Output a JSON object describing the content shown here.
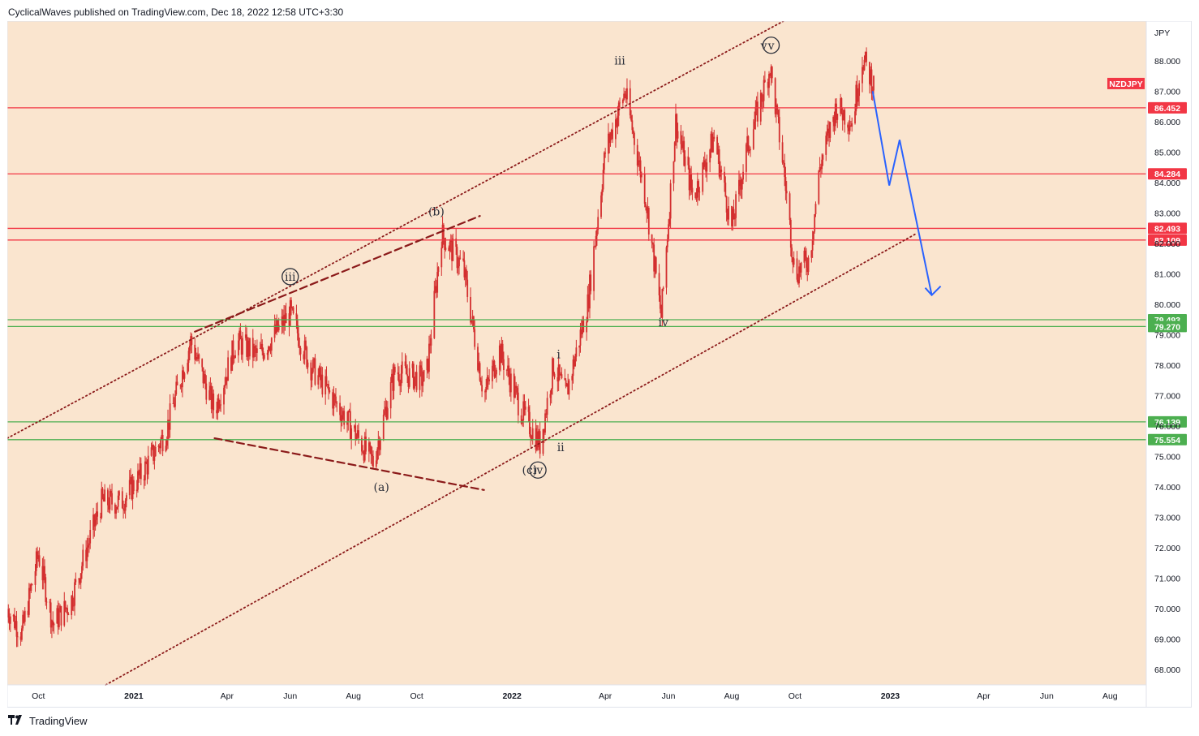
{
  "header": {
    "publisher_line": "CyclicalWaves published on TradingView.com, Dec 18, 2022 12:58 UTC+3:30"
  },
  "footer": {
    "brand": "TradingView",
    "logo_icon": "tradingview-logo-icon"
  },
  "colors": {
    "background": "#fae5cf",
    "resistance_line": "#f23645",
    "support_line": "#4caf50",
    "channel_line": "#8b1a1a",
    "forecast_arrow": "#2962ff",
    "candle": "#d32f2f",
    "frame": "#e0e3eb"
  },
  "chart_data": {
    "type": "candlestick",
    "symbol": "NZDJPY",
    "currency_label": "JPY",
    "ylim": [
      67.5,
      89.3
    ],
    "y_ticks": [
      "68.000",
      "69.000",
      "70.000",
      "71.000",
      "72.000",
      "73.000",
      "74.000",
      "75.000",
      "76.000",
      "77.000",
      "78.000",
      "79.000",
      "80.000",
      "81.000",
      "82.000",
      "83.000",
      "84.000",
      "85.000",
      "86.000",
      "87.000",
      "88.000"
    ],
    "x_ticks": [
      {
        "label": "Oct",
        "date": "2020-10",
        "bold": false
      },
      {
        "label": "2021",
        "date": "2021-01",
        "bold": true
      },
      {
        "label": "Apr",
        "date": "2021-04",
        "bold": false
      },
      {
        "label": "Jun",
        "date": "2021-06",
        "bold": false
      },
      {
        "label": "Aug",
        "date": "2021-08",
        "bold": false
      },
      {
        "label": "Oct",
        "date": "2021-10",
        "bold": false
      },
      {
        "label": "2022",
        "date": "2022-01",
        "bold": true
      },
      {
        "label": "Apr",
        "date": "2022-04",
        "bold": false
      },
      {
        "label": "Jun",
        "date": "2022-06",
        "bold": false
      },
      {
        "label": "Aug",
        "date": "2022-08",
        "bold": false
      },
      {
        "label": "Oct",
        "date": "2022-10",
        "bold": false
      },
      {
        "label": "2023",
        "date": "2023-01",
        "bold": true
      },
      {
        "label": "Apr",
        "date": "2023-04",
        "bold": false
      },
      {
        "label": "Jun",
        "date": "2023-06",
        "bold": false
      },
      {
        "label": "Aug",
        "date": "2023-08",
        "bold": false
      }
    ],
    "price_path": [
      {
        "date": "2020-09-01",
        "price": 70.0
      },
      {
        "date": "2020-09-15",
        "price": 69.2
      },
      {
        "date": "2020-10-01",
        "price": 71.8
      },
      {
        "date": "2020-10-15",
        "price": 69.5
      },
      {
        "date": "2020-11-01",
        "price": 70.2
      },
      {
        "date": "2020-11-15",
        "price": 71.8
      },
      {
        "date": "2020-12-01",
        "price": 73.5
      },
      {
        "date": "2020-12-20",
        "price": 73.5
      },
      {
        "date": "2021-01-10",
        "price": 74.5
      },
      {
        "date": "2021-02-01",
        "price": 75.8
      },
      {
        "date": "2021-02-25",
        "price": 78.8
      },
      {
        "date": "2021-03-20",
        "price": 76.5
      },
      {
        "date": "2021-04-10",
        "price": 78.8
      },
      {
        "date": "2021-05-01",
        "price": 78.3
      },
      {
        "date": "2021-06-01",
        "price": 79.7
      },
      {
        "date": "2021-06-20",
        "price": 78.0
      },
      {
        "date": "2021-07-20",
        "price": 76.5
      },
      {
        "date": "2021-08-20",
        "price": 74.8
      },
      {
        "date": "2021-09-10",
        "price": 77.8
      },
      {
        "date": "2021-10-10",
        "price": 77.5
      },
      {
        "date": "2021-10-25",
        "price": 82.3
      },
      {
        "date": "2021-11-15",
        "price": 81.2
      },
      {
        "date": "2021-12-05",
        "price": 77.0
      },
      {
        "date": "2021-12-20",
        "price": 78.5
      },
      {
        "date": "2022-01-10",
        "price": 76.5
      },
      {
        "date": "2022-01-28",
        "price": 75.4
      },
      {
        "date": "2022-02-10",
        "price": 78.0
      },
      {
        "date": "2022-02-22",
        "price": 77.0
      },
      {
        "date": "2022-03-15",
        "price": 80.0
      },
      {
        "date": "2022-04-01",
        "price": 85.0
      },
      {
        "date": "2022-04-20",
        "price": 87.0
      },
      {
        "date": "2022-05-10",
        "price": 83.5
      },
      {
        "date": "2022-05-25",
        "price": 79.6
      },
      {
        "date": "2022-06-08",
        "price": 86.0
      },
      {
        "date": "2022-06-25",
        "price": 83.5
      },
      {
        "date": "2022-07-15",
        "price": 85.5
      },
      {
        "date": "2022-08-01",
        "price": 82.5
      },
      {
        "date": "2022-08-15",
        "price": 85.0
      },
      {
        "date": "2022-09-07",
        "price": 87.8
      },
      {
        "date": "2022-09-20",
        "price": 84.5
      },
      {
        "date": "2022-10-01",
        "price": 81.0
      },
      {
        "date": "2022-10-15",
        "price": 81.5
      },
      {
        "date": "2022-10-25",
        "price": 84.5
      },
      {
        "date": "2022-11-10",
        "price": 86.5
      },
      {
        "date": "2022-11-25",
        "price": 86.0
      },
      {
        "date": "2022-12-05",
        "price": 88.1
      },
      {
        "date": "2022-12-16",
        "price": 87.2
      }
    ],
    "horizontal_levels": [
      {
        "price": 86.452,
        "label": "86.452",
        "kind": "resistance"
      },
      {
        "price": 84.284,
        "label": "84.284",
        "kind": "resistance"
      },
      {
        "price": 82.493,
        "label": "82.493",
        "kind": "resistance"
      },
      {
        "price": 82.109,
        "label": "82.109",
        "kind": "resistance"
      },
      {
        "price": 79.493,
        "label": "79.493",
        "kind": "support"
      },
      {
        "price": 79.27,
        "label": "79.270",
        "kind": "support"
      },
      {
        "price": 76.139,
        "label": "76.139",
        "kind": "support"
      },
      {
        "price": 75.554,
        "label": "75.554",
        "kind": "support"
      }
    ],
    "symbol_badge": {
      "price": 87.25,
      "label": "NZDJPY"
    },
    "channel_lines": [
      {
        "style": "dotted",
        "from": {
          "date": "2020-09-01",
          "price": 75.6
        },
        "to": {
          "date": "2022-09-20",
          "price": 89.3
        }
      },
      {
        "style": "dotted",
        "from": {
          "date": "2020-12-05",
          "price": 67.5
        },
        "to": {
          "date": "2023-01-25",
          "price": 82.3
        }
      },
      {
        "style": "dashed",
        "from": {
          "date": "2021-03-01",
          "price": 79.1
        },
        "to": {
          "date": "2021-12-01",
          "price": 82.9
        }
      },
      {
        "style": "dashed",
        "from": {
          "date": "2021-03-20",
          "price": 75.6
        },
        "to": {
          "date": "2021-12-05",
          "price": 73.9
        }
      }
    ],
    "forecast_path": [
      {
        "date": "2022-12-15",
        "price": 87.0
      },
      {
        "date": "2022-12-31",
        "price": 83.9
      },
      {
        "date": "2023-01-10",
        "price": 85.4
      },
      {
        "date": "2023-02-10",
        "price": 80.3
      }
    ],
    "wave_labels": [
      {
        "text": "(b)",
        "date": "2021-10-20",
        "price": 82.95,
        "circled": false
      },
      {
        "text": "iii",
        "date": "2021-06-01",
        "price": 80.8,
        "circled": true
      },
      {
        "text": "(a)",
        "date": "2021-08-28",
        "price": 73.9,
        "circled": false
      },
      {
        "text": "(c)",
        "date": "2022-01-18",
        "price": 74.45,
        "circled": false
      },
      {
        "text": "iv",
        "date": "2022-01-26",
        "price": 74.45,
        "circled": true
      },
      {
        "text": "i",
        "date": "2022-02-15",
        "price": 78.25,
        "circled": false
      },
      {
        "text": "ii",
        "date": "2022-02-17",
        "price": 75.2,
        "circled": false
      },
      {
        "text": "iii",
        "date": "2022-04-15",
        "price": 87.9,
        "circled": false
      },
      {
        "text": "iv",
        "date": "2022-05-27",
        "price": 79.3,
        "circled": false
      },
      {
        "text": "v",
        "date": "2022-09-01",
        "price": 88.4,
        "circled": false
      },
      {
        "text": "v",
        "date": "2022-09-08",
        "price": 88.4,
        "circled": true
      }
    ]
  }
}
